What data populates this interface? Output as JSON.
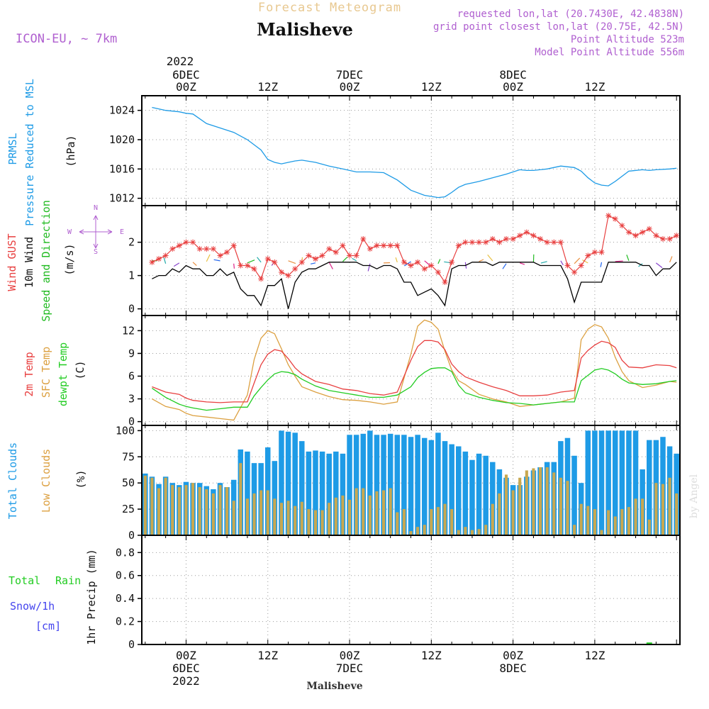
{
  "header": {
    "product": "Forecast Meteogram",
    "location": "Malisheve",
    "model": "ICON-EU, ~ 7km",
    "requested": "requested lon,lat (20.7430E, 42.4838N)",
    "grid_point": "grid point closest lon,lat (20.75E, 42.5N)",
    "point_altitude": "Point Altitude 523m",
    "model_altitude": "Model Point Altitude 556m",
    "footer_location": "Malisheve",
    "watermark": "by Angel"
  },
  "colors": {
    "pressure": "#1e9be6",
    "wind_gust": "#e84040",
    "wind": "#000000",
    "wind_dir": "#22bb22",
    "temp2m": "#e84040",
    "sfc_temp": "#dca040",
    "dewpt": "#22cc22",
    "total_clouds": "#1e9be6",
    "low_clouds": "#c8a850",
    "rain": "#22cc22",
    "snow": "#4444ee",
    "magenta": "#b060d0"
  },
  "time_axis": {
    "top_year": "2022",
    "top_labels": [
      {
        "hour": 0,
        "lines": [
          "6DEC",
          "00Z"
        ]
      },
      {
        "hour": 12,
        "lines": [
          "12Z"
        ]
      },
      {
        "hour": 24,
        "lines": [
          "7DEC",
          "00Z"
        ]
      },
      {
        "hour": 36,
        "lines": [
          "12Z"
        ]
      },
      {
        "hour": 48,
        "lines": [
          "8DEC",
          "00Z"
        ]
      },
      {
        "hour": 60,
        "lines": [
          "12Z"
        ]
      }
    ],
    "bottom_labels": [
      {
        "hour": 0,
        "lines": [
          "00Z",
          "6DEC",
          "2022"
        ]
      },
      {
        "hour": 12,
        "lines": [
          "12Z"
        ]
      },
      {
        "hour": 24,
        "lines": [
          "00Z",
          "7DEC"
        ]
      },
      {
        "hour": 36,
        "lines": [
          "12Z"
        ]
      },
      {
        "hour": 48,
        "lines": [
          "00Z",
          "8DEC"
        ]
      },
      {
        "hour": 60,
        "lines": [
          "12Z"
        ]
      }
    ]
  },
  "panels": {
    "pressure": {
      "labels": [
        "PRMSL",
        "Pressure Reduced to MSL",
        "(hPa)"
      ]
    },
    "wind": {
      "labels": [
        "Wind GUST",
        "10m Wind",
        "Speed and Direction",
        "(m/s)"
      ],
      "compass": [
        "N",
        "W",
        "E",
        "S"
      ]
    },
    "temp": {
      "labels": [
        "2m Temp",
        "SFC Temp",
        "dewpt Temp",
        "(C)"
      ]
    },
    "clouds": {
      "labels": [
        "Total Clouds",
        "Low Clouds",
        "(%)"
      ]
    },
    "precip": {
      "labels": [
        "Total",
        "Rain",
        "Snow/1h",
        "[cm]",
        "1hr Precip (mm)"
      ]
    }
  },
  "chart_data": [
    {
      "type": "line",
      "title": "PRMSL Pressure Reduced to MSL",
      "ylabel": "(hPa)",
      "x_unit": "hours from 6DEC 00Z",
      "ylim": [
        1011,
        1026
      ],
      "yticks": [
        1012,
        1016,
        1020,
        1024
      ],
      "x": [
        -5,
        -3,
        -1,
        0,
        1,
        3,
        5,
        7,
        9,
        11,
        12,
        13,
        14,
        15,
        16,
        17,
        19,
        21,
        23,
        25,
        27,
        29,
        31,
        33,
        35,
        37,
        38,
        39,
        40,
        41,
        42,
        43,
        45,
        47,
        49,
        50,
        51,
        53,
        55,
        57,
        58,
        59,
        60,
        61,
        62,
        63,
        65,
        67,
        68,
        69,
        71,
        72
      ],
      "series": [
        {
          "name": "PRMSL",
          "values": [
            1024.4,
            1024.0,
            1023.8,
            1023.6,
            1023.5,
            1022.2,
            1021.6,
            1021.0,
            1020.0,
            1018.6,
            1017.3,
            1016.9,
            1016.7,
            1016.9,
            1017.1,
            1017.2,
            1016.9,
            1016.4,
            1016.0,
            1015.6,
            1015.6,
            1015.5,
            1014.5,
            1013.1,
            1012.4,
            1012.1,
            1012.2,
            1012.8,
            1013.5,
            1013.9,
            1014.1,
            1014.3,
            1014.8,
            1015.3,
            1015.9,
            1015.8,
            1015.8,
            1016.0,
            1016.4,
            1016.2,
            1015.7,
            1014.8,
            1014.1,
            1013.8,
            1013.7,
            1014.3,
            1015.7,
            1015.9,
            1015.8,
            1015.9,
            1016.0,
            1016.1
          ]
        }
      ]
    },
    {
      "type": "line",
      "title": "Wind GUST, 10m Wind Speed and Direction",
      "ylabel": "(m/s)",
      "x_unit": "hours from 6DEC 00Z",
      "ylim": [
        -0.2,
        3.1
      ],
      "yticks": [
        0,
        1,
        2
      ],
      "x": [
        -5,
        -4,
        -3,
        -2,
        -1,
        0,
        1,
        2,
        3,
        4,
        5,
        6,
        7,
        8,
        9,
        10,
        11,
        12,
        13,
        14,
        15,
        16,
        17,
        18,
        19,
        20,
        21,
        22,
        23,
        24,
        25,
        26,
        27,
        28,
        29,
        30,
        31,
        32,
        33,
        34,
        35,
        36,
        37,
        38,
        39,
        40,
        41,
        42,
        43,
        44,
        45,
        46,
        47,
        48,
        49,
        50,
        51,
        52,
        53,
        54,
        55,
        56,
        57,
        58,
        59,
        60,
        61,
        62,
        63,
        64,
        65,
        66,
        67,
        68,
        69,
        70,
        71,
        72
      ],
      "series": [
        {
          "name": "Wind GUST",
          "values": [
            1.4,
            1.5,
            1.6,
            1.8,
            1.9,
            2.0,
            2.0,
            1.8,
            1.8,
            1.8,
            1.6,
            1.7,
            1.9,
            1.3,
            1.3,
            1.2,
            0.9,
            1.5,
            1.4,
            1.1,
            1.0,
            1.2,
            1.4,
            1.6,
            1.5,
            1.6,
            1.8,
            1.7,
            1.9,
            1.6,
            1.6,
            2.1,
            1.8,
            1.9,
            1.9,
            1.9,
            1.9,
            1.4,
            1.3,
            1.4,
            1.2,
            1.3,
            1.1,
            0.8,
            1.4,
            1.9,
            2.0,
            2.0,
            2.0,
            2.0,
            2.1,
            2.0,
            2.1,
            2.1,
            2.2,
            2.3,
            2.2,
            2.1,
            2.0,
            2.0,
            2.0,
            1.3,
            1.1,
            1.3,
            1.6,
            1.7,
            1.7,
            2.8,
            2.7,
            2.5,
            2.3,
            2.2,
            2.3,
            2.4,
            2.2,
            2.1,
            2.1,
            2.2
          ]
        },
        {
          "name": "10m Wind",
          "values": [
            0.9,
            1.0,
            1.0,
            1.2,
            1.1,
            1.3,
            1.2,
            1.2,
            1.0,
            1.0,
            1.2,
            1.0,
            1.1,
            0.6,
            0.4,
            0.4,
            0.1,
            0.7,
            0.7,
            0.9,
            0.0,
            0.8,
            1.1,
            1.2,
            1.2,
            1.3,
            1.4,
            1.4,
            1.4,
            1.4,
            1.4,
            1.3,
            1.3,
            1.2,
            1.3,
            1.3,
            1.2,
            0.8,
            0.8,
            0.4,
            0.5,
            0.6,
            0.4,
            0.1,
            1.2,
            1.3,
            1.3,
            1.4,
            1.4,
            1.4,
            1.3,
            1.4,
            1.4,
            1.4,
            1.4,
            1.4,
            1.4,
            1.3,
            1.3,
            1.3,
            1.3,
            0.9,
            0.2,
            0.8,
            0.8,
            0.8,
            0.8,
            1.4,
            1.4,
            1.4,
            1.4,
            1.4,
            1.3,
            1.3,
            1.0,
            1.2,
            1.2,
            1.4
          ]
        }
      ]
    },
    {
      "type": "line",
      "title": "2m Temp, SFC Temp, dewpt Temp",
      "ylabel": "(C)",
      "x_unit": "hours from 6DEC 00Z",
      "ylim": [
        -0.5,
        14
      ],
      "yticks": [
        0,
        3,
        6,
        9,
        12
      ],
      "x": [
        -5,
        -3,
        -1,
        0,
        1,
        3,
        5,
        7,
        9,
        10,
        11,
        12,
        13,
        14,
        15,
        16,
        17,
        19,
        21,
        23,
        25,
        27,
        29,
        31,
        33,
        34,
        35,
        36,
        37,
        38,
        39,
        40,
        41,
        43,
        45,
        47,
        49,
        51,
        53,
        55,
        57,
        58,
        59,
        60,
        61,
        62,
        63,
        64,
        65,
        67,
        69,
        71,
        72
      ],
      "series": [
        {
          "name": "2m Temp",
          "values": [
            4.6,
            3.9,
            3.6,
            3.1,
            2.8,
            2.6,
            2.5,
            2.6,
            2.6,
            5.1,
            7.5,
            8.9,
            9.5,
            9.3,
            8.3,
            7.1,
            6.3,
            5.3,
            4.9,
            4.3,
            4.1,
            3.7,
            3.5,
            3.9,
            8.1,
            9.9,
            10.7,
            10.7,
            10.5,
            9.5,
            7.6,
            6.6,
            5.9,
            5.2,
            4.6,
            4.1,
            3.4,
            3.4,
            3.5,
            3.9,
            4.1,
            8.4,
            9.4,
            10.1,
            10.6,
            10.4,
            9.8,
            8.1,
            7.2,
            7.1,
            7.5,
            7.4,
            7.1
          ]
        },
        {
          "name": "SFC Temp",
          "values": [
            3.0,
            2.0,
            1.6,
            1.1,
            0.8,
            0.6,
            0.4,
            0.2,
            3.5,
            8.2,
            11.0,
            12.0,
            11.6,
            9.6,
            7.5,
            6.0,
            4.6,
            3.9,
            3.3,
            2.9,
            2.8,
            2.6,
            2.3,
            2.6,
            8.9,
            12.6,
            13.4,
            13.1,
            12.2,
            9.3,
            6.8,
            5.4,
            4.9,
            3.6,
            3.0,
            2.6,
            2.0,
            2.2,
            2.4,
            2.6,
            3.1,
            10.8,
            12.2,
            12.8,
            12.5,
            11.0,
            8.5,
            6.6,
            5.4,
            4.5,
            4.8,
            5.3,
            5.2
          ]
        },
        {
          "name": "dewpt Temp",
          "values": [
            4.4,
            3.2,
            2.3,
            2.0,
            1.8,
            1.5,
            1.7,
            1.9,
            1.9,
            3.4,
            4.5,
            5.5,
            6.3,
            6.6,
            6.5,
            6.2,
            5.6,
            4.7,
            4.1,
            3.8,
            3.5,
            3.2,
            3.2,
            3.5,
            4.6,
            5.8,
            6.5,
            7.0,
            7.1,
            7.1,
            6.6,
            4.8,
            3.8,
            3.2,
            2.8,
            2.5,
            2.4,
            2.2,
            2.4,
            2.6,
            2.6,
            5.4,
            6.1,
            6.8,
            7.0,
            6.8,
            6.3,
            5.6,
            5.1,
            4.9,
            5.0,
            5.3,
            5.4
          ]
        }
      ]
    },
    {
      "type": "bar",
      "title": "Total Clouds, Low Clouds",
      "ylabel": "(%)",
      "x_unit": "hours from 6DEC 00Z",
      "ylim": [
        0,
        105
      ],
      "yticks": [
        0,
        25,
        50,
        75,
        100
      ],
      "x": [
        -6,
        -5,
        -4,
        -3,
        -2,
        -1,
        0,
        1,
        2,
        3,
        4,
        5,
        6,
        7,
        8,
        9,
        10,
        11,
        12,
        13,
        14,
        15,
        16,
        17,
        18,
        19,
        20,
        21,
        22,
        23,
        24,
        25,
        26,
        27,
        28,
        29,
        30,
        31,
        32,
        33,
        34,
        35,
        36,
        37,
        38,
        39,
        40,
        41,
        42,
        43,
        44,
        45,
        46,
        47,
        48,
        49,
        50,
        51,
        52,
        53,
        54,
        55,
        56,
        57,
        58,
        59,
        60,
        61,
        62,
        63,
        64,
        65,
        66,
        67,
        68,
        69,
        70,
        71,
        72,
        73
      ],
      "series": [
        {
          "name": "Total Clouds",
          "values": [
            59,
            56,
            49,
            56,
            50,
            48,
            51,
            50,
            50,
            47,
            44,
            50,
            46,
            53,
            82,
            80,
            69,
            69,
            84,
            71,
            100,
            99,
            98,
            90,
            80,
            81,
            80,
            78,
            80,
            78,
            96,
            96,
            97,
            100,
            96,
            96,
            97,
            96,
            96,
            94,
            96,
            93,
            91,
            98,
            90,
            87,
            85,
            80,
            72,
            78,
            76,
            70,
            63,
            55,
            48,
            48,
            56,
            62,
            65,
            70,
            70,
            90,
            93,
            76,
            50,
            100,
            100,
            100,
            100,
            100,
            100,
            100,
            100,
            63,
            91,
            91,
            94,
            85,
            78,
            78
          ]
        },
        {
          "name": "Low Clouds",
          "values": [
            57,
            55,
            45,
            55,
            48,
            46,
            48,
            50,
            46,
            44,
            40,
            48,
            46,
            33,
            69,
            35,
            40,
            43,
            43,
            35,
            31,
            33,
            28,
            32,
            25,
            24,
            24,
            31,
            36,
            38,
            34,
            45,
            45,
            38,
            42,
            43,
            45,
            22,
            25,
            4,
            8,
            10,
            25,
            27,
            30,
            25,
            5,
            8,
            5,
            6,
            10,
            30,
            40,
            58,
            43,
            55,
            62,
            64,
            65,
            65,
            60,
            55,
            52,
            10,
            30,
            28,
            25,
            5,
            24,
            18,
            25,
            27,
            35,
            35,
            15,
            50,
            49,
            55,
            40,
            40
          ]
        }
      ]
    },
    {
      "type": "bar",
      "title": "1hr Precip (mm)",
      "ylabel": "1hr Precip (mm)",
      "x_unit": "hours from 6DEC 00Z",
      "ylim": [
        0,
        0.95
      ],
      "yticks": [
        0,
        0.2,
        0.4,
        0.6,
        0.8
      ],
      "x": [
        68
      ],
      "series": [
        {
          "name": "Total Rain",
          "values": [
            0.005
          ]
        },
        {
          "name": "Snow/1h [cm]",
          "values": [
            0
          ]
        }
      ]
    }
  ]
}
